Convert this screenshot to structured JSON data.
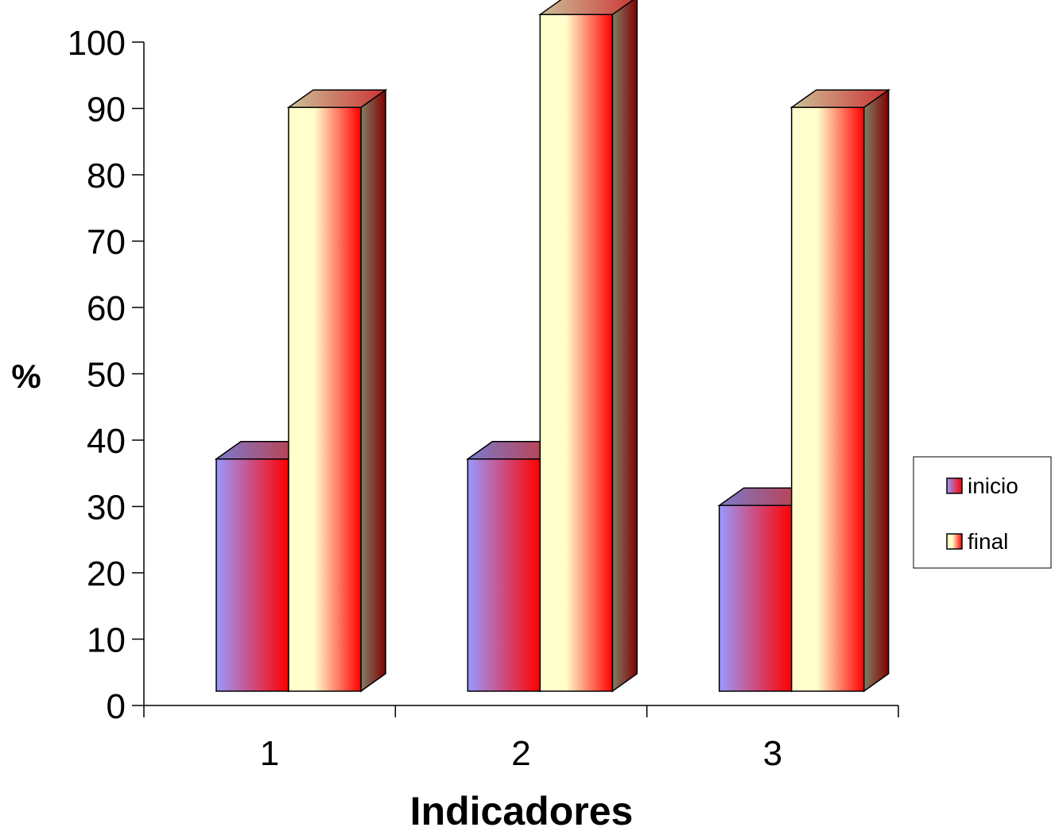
{
  "chart_data": {
    "type": "bar",
    "style": "3d-clustered-column",
    "categories": [
      "1",
      "2",
      "3"
    ],
    "series": [
      {
        "name": "inicio",
        "values": [
          35,
          35,
          28
        ],
        "color_start": "#9999ff",
        "color_end": "#ff0000"
      },
      {
        "name": "final",
        "values": [
          88,
          102,
          88
        ],
        "color_start": "#ffffcc",
        "color_end": "#ff0000"
      }
    ],
    "xlabel": "Indicadores",
    "ylabel": "%",
    "ylim": [
      0,
      100
    ],
    "yticks": [
      "0",
      "10",
      "20",
      "30",
      "40",
      "50",
      "60",
      "70",
      "80",
      "90",
      "100"
    ],
    "grid": false,
    "legend_position": "right"
  }
}
